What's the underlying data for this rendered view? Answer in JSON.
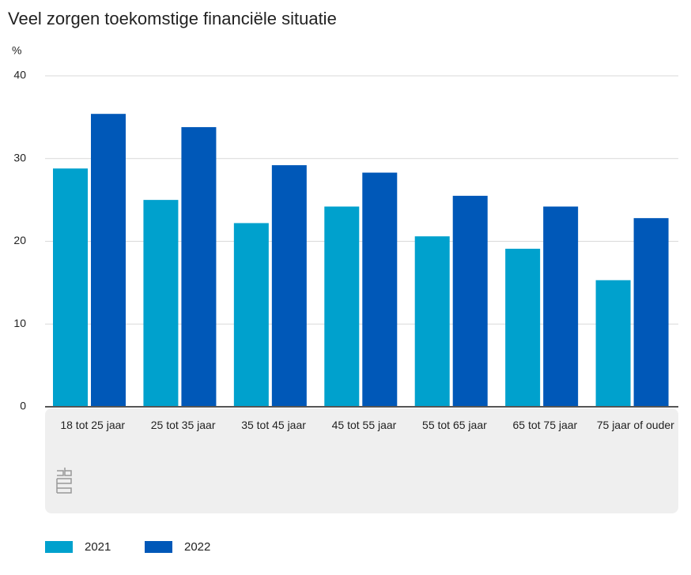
{
  "chart_data": {
    "type": "bar",
    "title": "Veel zorgen toekomstige financiële situatie",
    "y_label": "%",
    "categories": [
      "18 tot 25 jaar",
      "25 tot 35 jaar",
      "35 tot 45 jaar",
      "45 tot 55 jaar",
      "55 tot 65 jaar",
      "65 tot 75 jaar",
      "75 jaar of ouder"
    ],
    "series": [
      {
        "name": "2021",
        "color": "#00a1cd",
        "values": [
          28.8,
          25.0,
          22.2,
          24.2,
          20.6,
          19.1,
          15.3
        ]
      },
      {
        "name": "2022",
        "color": "#0058b8",
        "values": [
          35.4,
          33.8,
          29.2,
          28.3,
          25.5,
          24.2,
          22.8
        ]
      }
    ],
    "ylim": [
      0,
      40
    ],
    "yticks": [
      0,
      10,
      20,
      30,
      40
    ],
    "grid": true,
    "legend": "bottom-left"
  }
}
